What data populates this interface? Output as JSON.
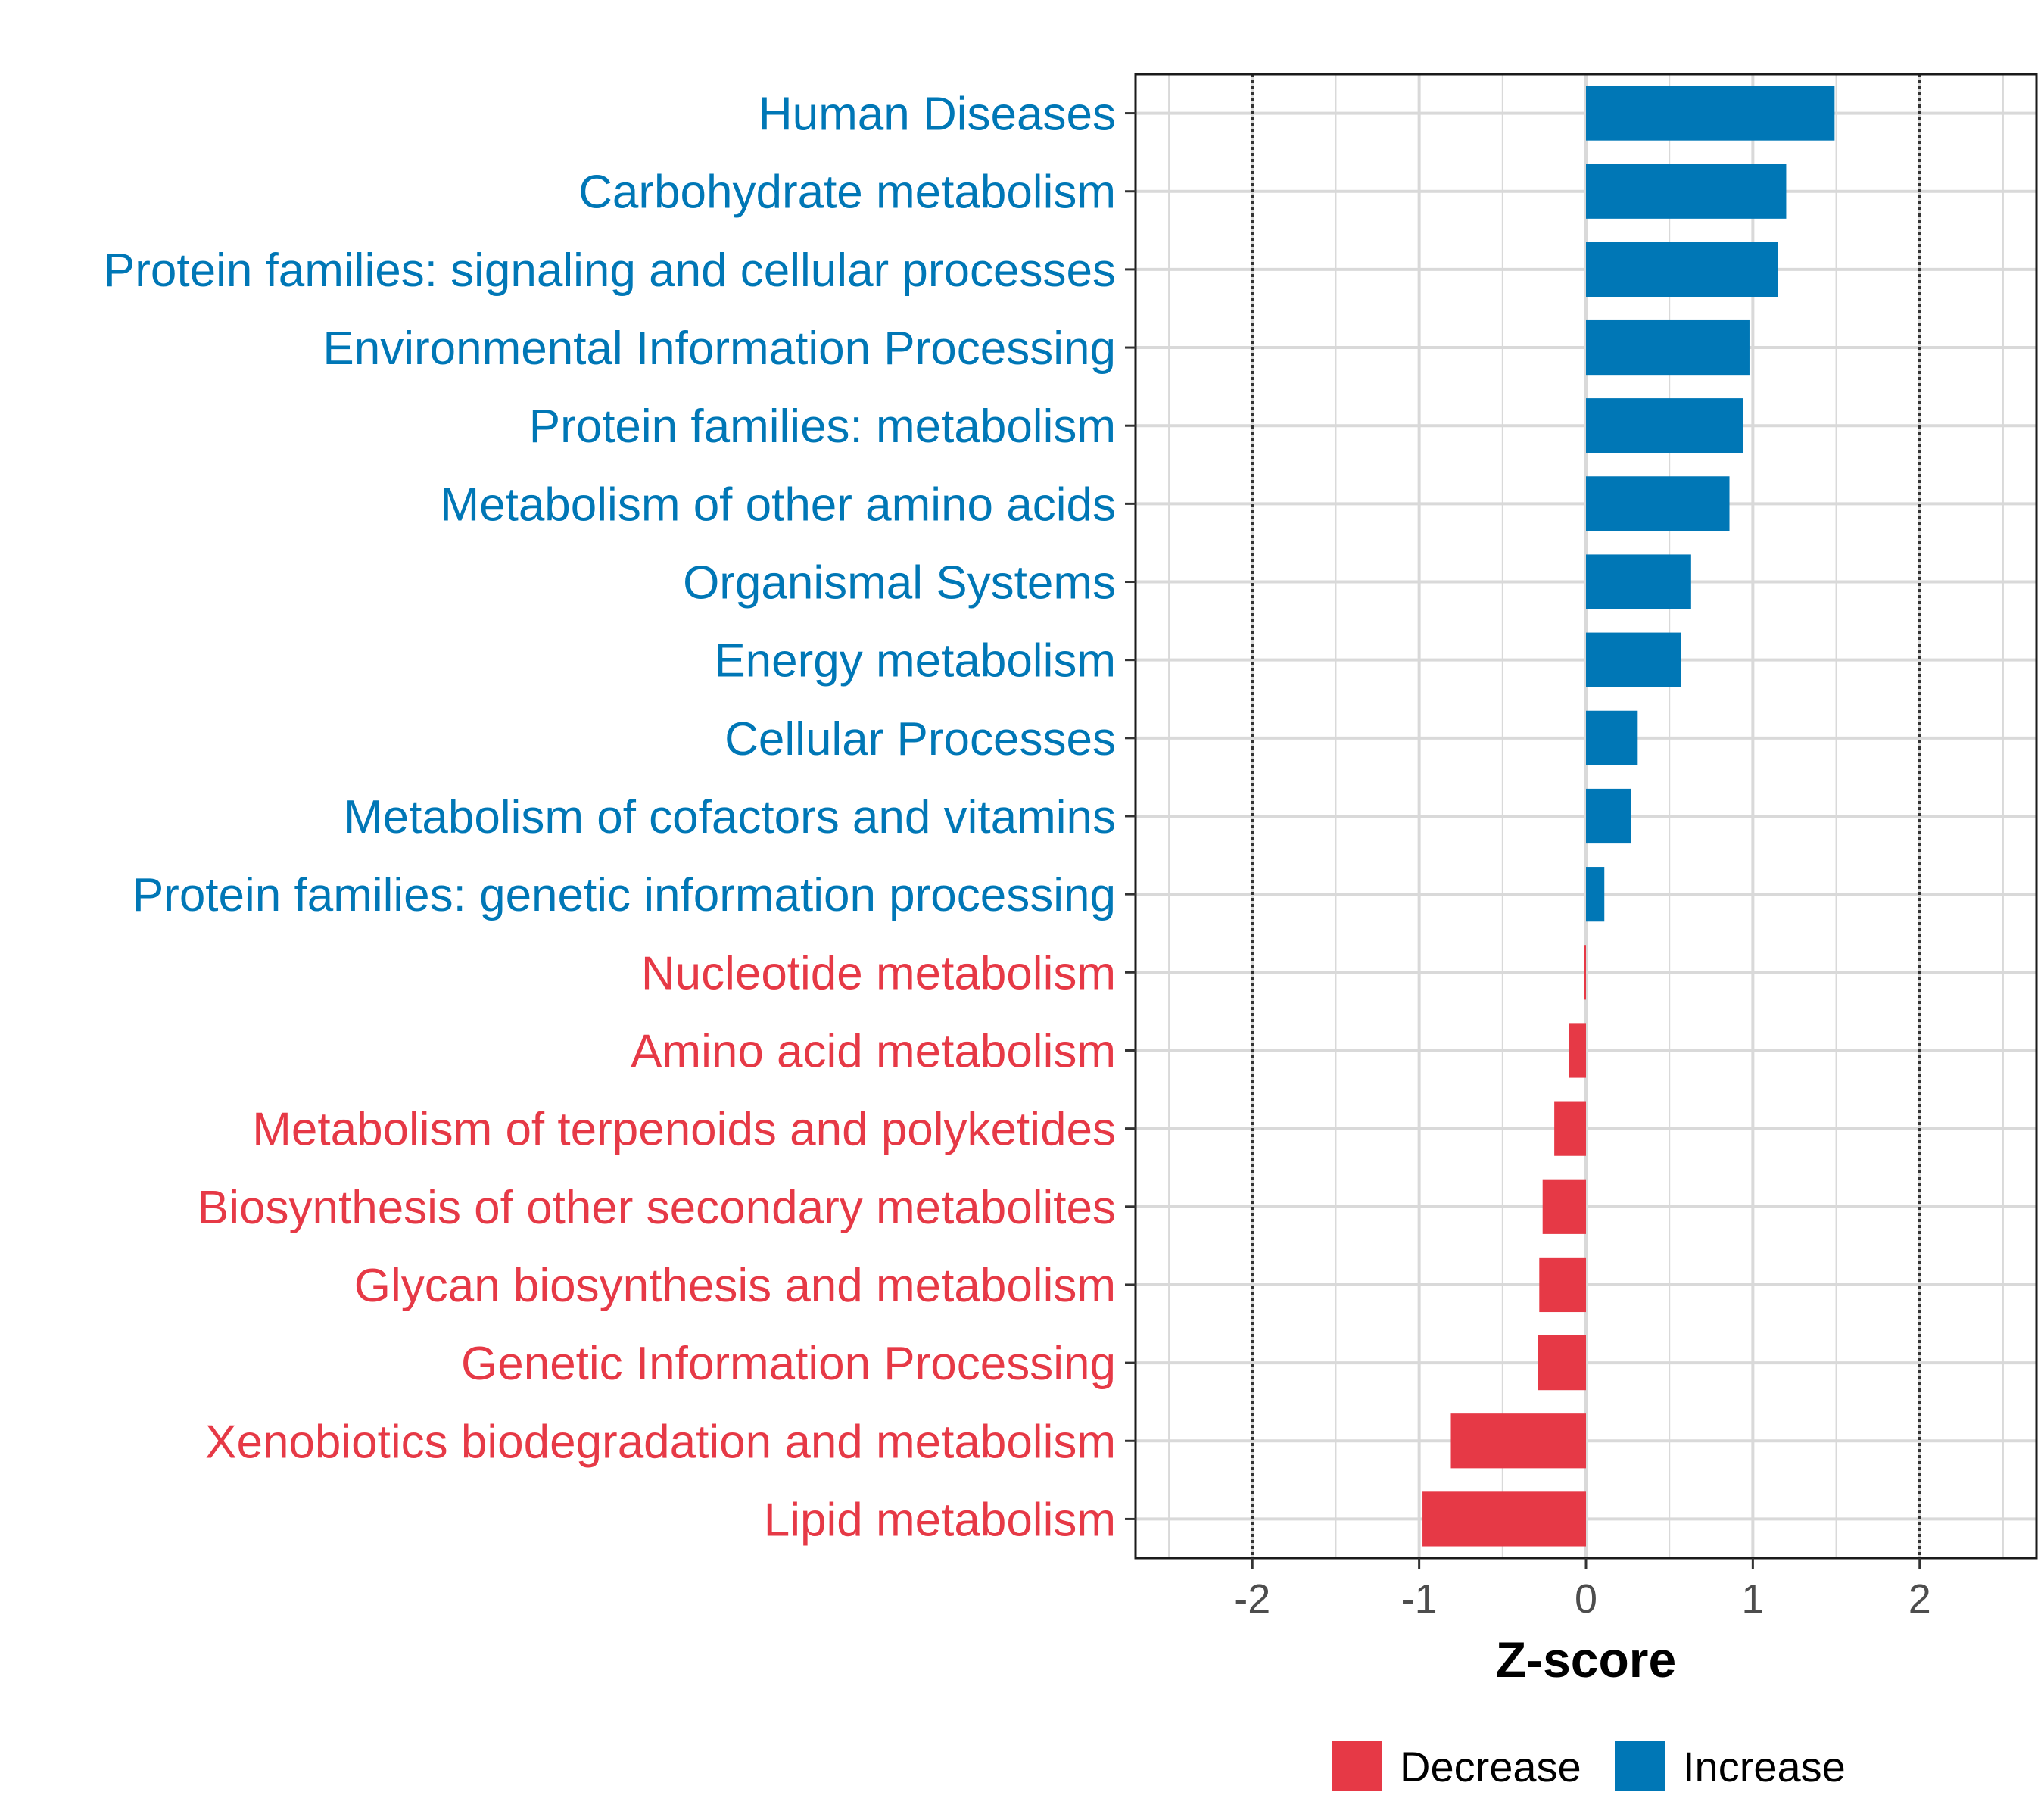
{
  "chart_data": {
    "type": "bar",
    "orientation": "horizontal",
    "title": "",
    "xlabel": "Z-score",
    "ylabel": "",
    "xlim": [
      -2.7,
      2.7
    ],
    "xticks": [
      -2,
      -1,
      0,
      1,
      2
    ],
    "xtick_labels": [
      "-2",
      "-1",
      "0",
      "1",
      "2"
    ],
    "reference_lines": [
      -2,
      2
    ],
    "grid": true,
    "legend_position": "bottom",
    "colors": {
      "Decrease": "#e63946",
      "Increase": "#0077b6"
    },
    "legend": [
      {
        "label": "Decrease",
        "group": "Decrease"
      },
      {
        "label": "Increase",
        "group": "Increase"
      }
    ],
    "categories": [
      "Human Diseases",
      "Carbohydrate metabolism",
      "Protein families: signaling and cellular processes",
      "Environmental Information Processing",
      "Protein families: metabolism",
      "Metabolism of other amino acids",
      "Organismal Systems",
      "Energy metabolism",
      "Cellular Processes",
      "Metabolism of cofactors and vitamins",
      "Protein families: genetic information processing",
      "Nucleotide metabolism",
      "Amino acid metabolism",
      "Metabolism of terpenoids and polyketides",
      "Biosynthesis of other secondary metabolites",
      "Glycan biosynthesis and metabolism",
      "Genetic Information Processing",
      "Xenobiotics biodegradation and metabolism",
      "Lipid metabolism"
    ],
    "values": [
      1.49,
      1.2,
      1.15,
      0.98,
      0.94,
      0.86,
      0.63,
      0.57,
      0.31,
      0.27,
      0.11,
      -0.01,
      -0.1,
      -0.19,
      -0.26,
      -0.28,
      -0.29,
      -0.81,
      -0.98
    ],
    "groups": [
      "Increase",
      "Increase",
      "Increase",
      "Increase",
      "Increase",
      "Increase",
      "Increase",
      "Increase",
      "Increase",
      "Increase",
      "Increase",
      "Decrease",
      "Decrease",
      "Decrease",
      "Decrease",
      "Decrease",
      "Decrease",
      "Decrease",
      "Decrease"
    ]
  }
}
